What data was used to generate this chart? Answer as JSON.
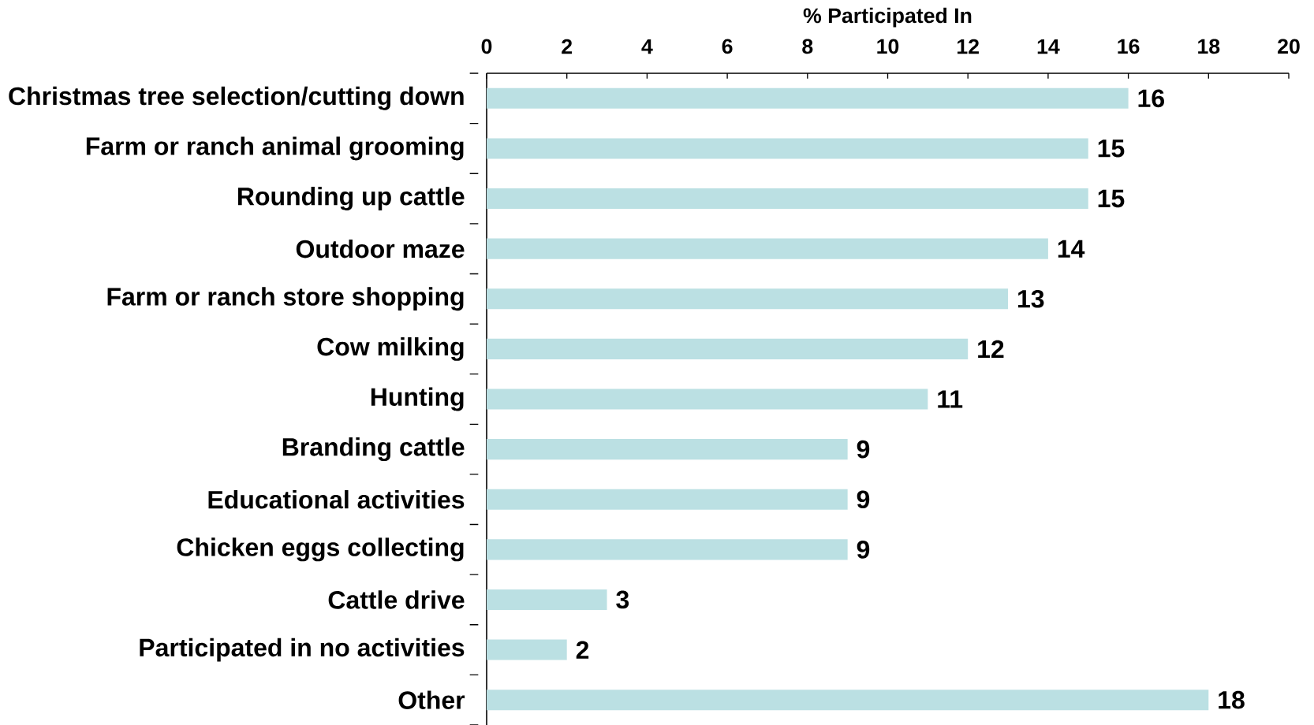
{
  "chart_data": {
    "type": "bar",
    "orientation": "horizontal",
    "xlabel": "% Participated In",
    "categories": [
      "Christmas tree selection/cutting down",
      "Farm or ranch animal grooming",
      "Rounding up cattle",
      "Outdoor maze",
      "Farm or ranch store shopping",
      "Cow milking",
      "Hunting",
      "Branding cattle",
      "Educational activities",
      "Chicken eggs collecting",
      "Cattle drive",
      "Participated in no activities",
      "Other"
    ],
    "values": [
      16,
      15,
      15,
      14,
      13,
      12,
      11,
      9,
      9,
      9,
      3,
      2,
      18
    ],
    "color": "#bbe0e3",
    "xlim": [
      0,
      20
    ],
    "xticks": [
      0,
      2,
      4,
      6,
      8,
      10,
      12,
      14,
      16,
      18,
      20
    ],
    "data_labels": true
  }
}
